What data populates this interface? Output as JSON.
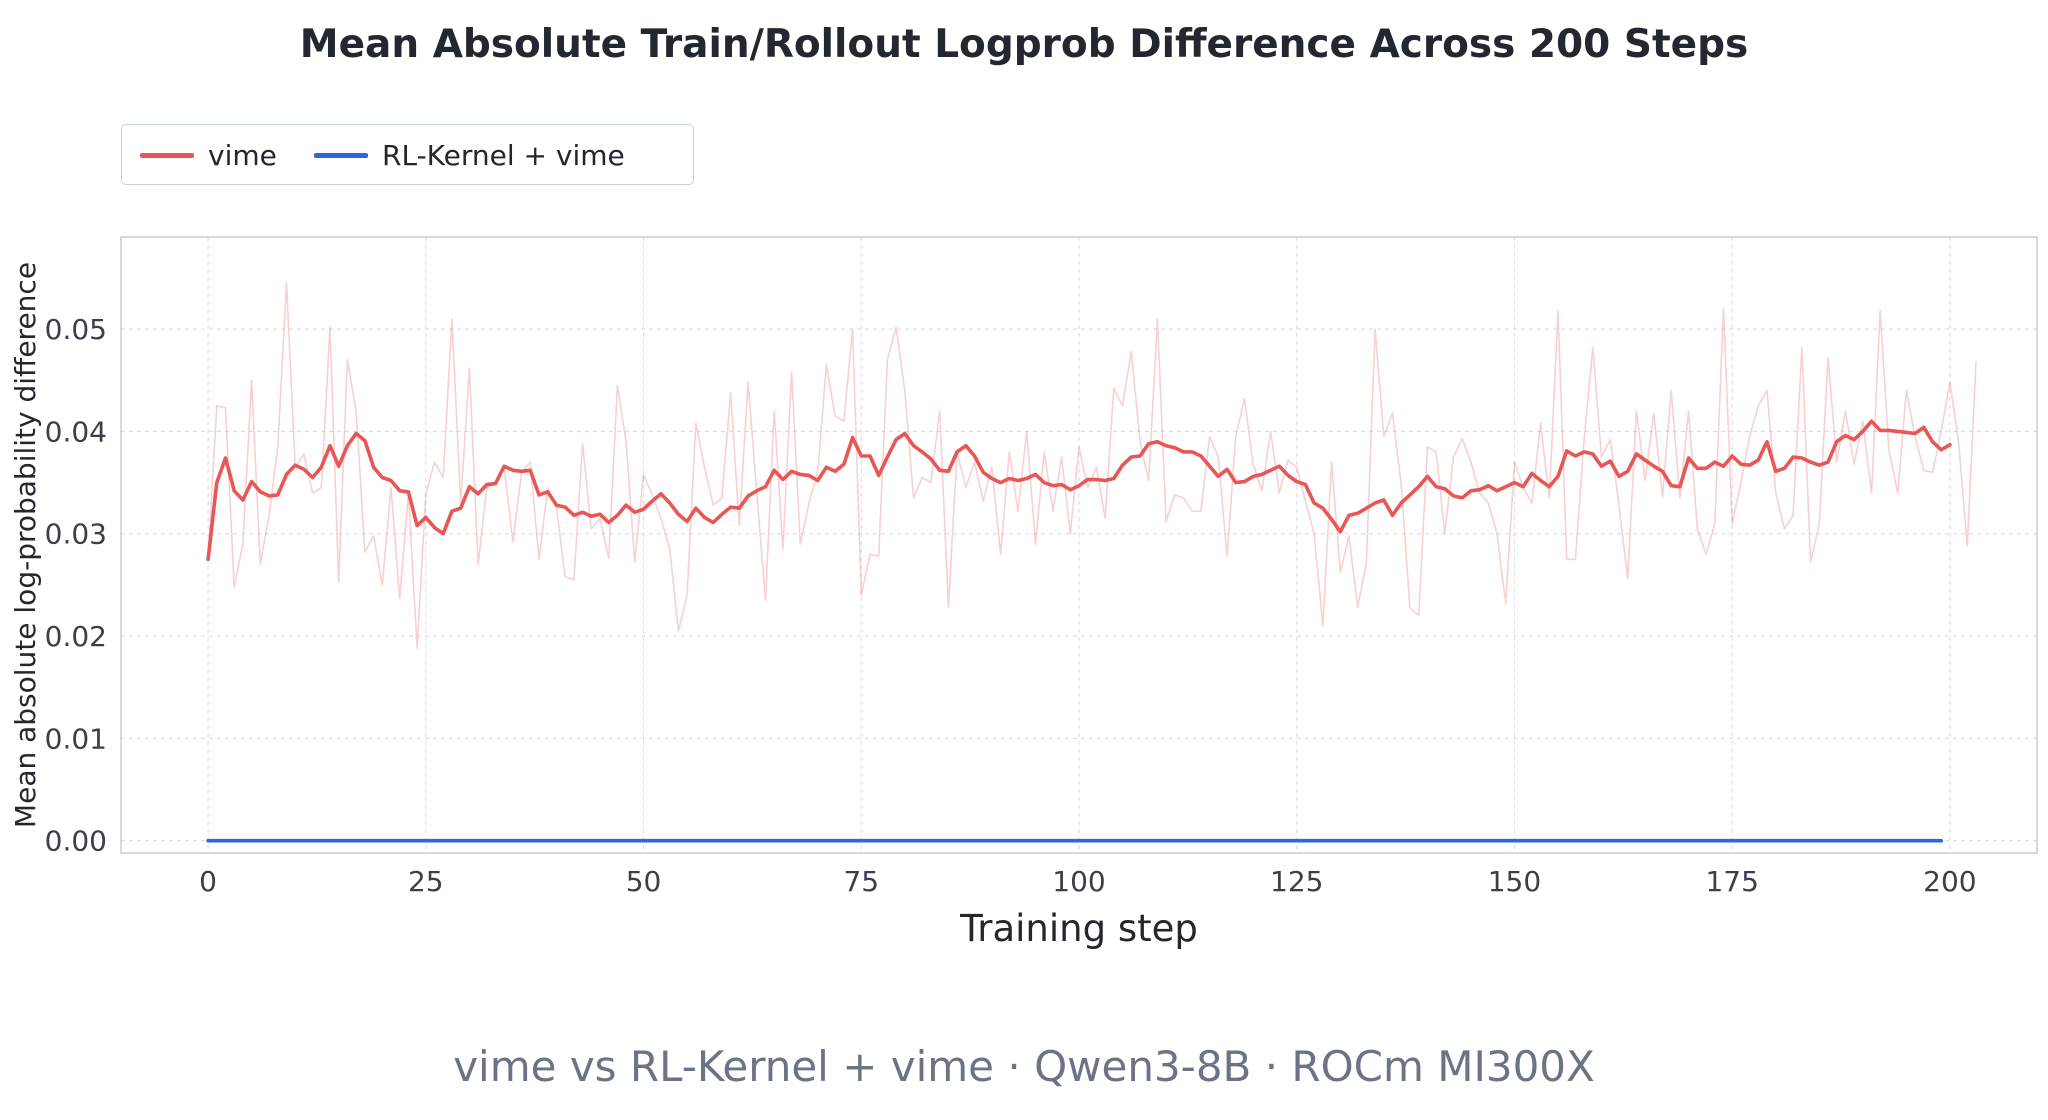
{
  "title": "Mean Absolute Train/Rollout Logprob Difference Across 200 Steps",
  "subtitle": "vime vs RL-Kernel + vime · Qwen3-8B · ROCm MI300X",
  "legend": [
    {
      "label": "vime",
      "color": "#e85656"
    },
    {
      "label": "RL-Kernel + vime",
      "color": "#2f66de"
    }
  ],
  "chart_data": {
    "type": "line",
    "xlabel": "Training step",
    "ylabel": "Mean absolute log-probability difference",
    "xlim": [
      -10,
      210
    ],
    "ylim": [
      -0.0012,
      0.059
    ],
    "xticks": [
      0,
      25,
      50,
      75,
      100,
      125,
      150,
      175,
      200
    ],
    "xtick_labels": [
      "0",
      "25",
      "50",
      "75",
      "100",
      "125",
      "150",
      "175",
      "200"
    ],
    "yticks": [
      0.0,
      0.01,
      0.02,
      0.03,
      0.04,
      0.05
    ],
    "ytick_labels": [
      "0.00",
      "0.01",
      "0.02",
      "0.03",
      "0.04",
      "0.05"
    ],
    "grid": true,
    "legend_position": "top-left, above plot",
    "x_start": 0,
    "x_step": 1,
    "series": [
      {
        "name": "vime",
        "style": "raw (faint)",
        "color": "#e85656",
        "values": [
          0.0275,
          0.0425,
          0.0423,
          0.0248,
          0.029,
          0.045,
          0.027,
          0.0318,
          0.0385,
          0.0545,
          0.0365,
          0.0378,
          0.034,
          0.0345,
          0.0502,
          0.0253,
          0.047,
          0.042,
          0.0282,
          0.0298,
          0.025,
          0.0345,
          0.0237,
          0.034,
          0.0188,
          0.0338,
          0.037,
          0.0355,
          0.051,
          0.033,
          0.0462,
          0.027,
          0.0345,
          0.035,
          0.0365,
          0.0292,
          0.036,
          0.037,
          0.0275,
          0.0345,
          0.0325,
          0.0258,
          0.0255,
          0.0388,
          0.0305,
          0.0315,
          0.0276,
          0.0445,
          0.039,
          0.0272,
          0.0358,
          0.0338,
          0.0315,
          0.0285,
          0.0205,
          0.024,
          0.0408,
          0.0365,
          0.0328,
          0.0335,
          0.0438,
          0.0308,
          0.0448,
          0.034,
          0.0235,
          0.042,
          0.0285,
          0.0458,
          0.029,
          0.033,
          0.036,
          0.0465,
          0.0415,
          0.041,
          0.05,
          0.024,
          0.028,
          0.0278,
          0.047,
          0.0502,
          0.044,
          0.0335,
          0.0355,
          0.035,
          0.042,
          0.0228,
          0.038,
          0.0345,
          0.037,
          0.0332,
          0.0365,
          0.028,
          0.038,
          0.0322,
          0.04,
          0.029,
          0.038,
          0.0322,
          0.0375,
          0.03,
          0.0385,
          0.0345,
          0.0365,
          0.0315,
          0.0442,
          0.0425,
          0.0478,
          0.039,
          0.0352,
          0.051,
          0.0312,
          0.0338,
          0.0335,
          0.0322,
          0.0322,
          0.0395,
          0.0375,
          0.0278,
          0.0395,
          0.0432,
          0.0368,
          0.0342,
          0.04,
          0.034,
          0.0372,
          0.0365,
          0.0332,
          0.03,
          0.021,
          0.037,
          0.0262,
          0.0298,
          0.0228,
          0.0272,
          0.05,
          0.0395,
          0.0418,
          0.0348,
          0.0228,
          0.022,
          0.0385,
          0.038,
          0.03,
          0.0375,
          0.0393,
          0.037,
          0.034,
          0.033,
          0.03,
          0.0232,
          0.037,
          0.0345,
          0.033,
          0.0408,
          0.0335,
          0.0518,
          0.0275,
          0.0275,
          0.0392,
          0.0482,
          0.0375,
          0.0392,
          0.0328,
          0.0256,
          0.042,
          0.0352,
          0.0418,
          0.0336,
          0.044,
          0.0335,
          0.042,
          0.0305,
          0.028,
          0.031,
          0.052,
          0.031,
          0.035,
          0.0395,
          0.0425,
          0.044,
          0.034,
          0.0305,
          0.0318,
          0.0482,
          0.0272,
          0.031,
          0.0472,
          0.037,
          0.042,
          0.0368,
          0.041,
          0.034,
          0.0518,
          0.0382,
          0.034,
          0.044,
          0.0395,
          0.0362,
          0.036,
          0.04,
          0.0448,
          0.039,
          0.0288,
          0.0468
        ]
      },
      {
        "name": "vime",
        "style": "smoothed (bold)",
        "color": "#e85656",
        "values": [
          0.0275,
          0.035,
          0.0374,
          0.0342,
          0.0333,
          0.0351,
          0.0341,
          0.0337,
          0.0338,
          0.0358,
          0.0367,
          0.0363,
          0.0355,
          0.0365,
          0.0386,
          0.0366,
          0.0386,
          0.0398,
          0.0391,
          0.0365,
          0.0355,
          0.0352,
          0.0342,
          0.0341,
          0.0308,
          0.0316,
          0.0306,
          0.03,
          0.0322,
          0.0325,
          0.0346,
          0.0339,
          0.0348,
          0.0349,
          0.0366,
          0.0362,
          0.0361,
          0.0362,
          0.0338,
          0.0341,
          0.0328,
          0.0326,
          0.0318,
          0.0321,
          0.0317,
          0.0319,
          0.0311,
          0.0318,
          0.0328,
          0.0321,
          0.0324,
          0.0332,
          0.0339,
          0.033,
          0.0319,
          0.0312,
          0.0325,
          0.0316,
          0.0311,
          0.0319,
          0.0326,
          0.0325,
          0.0337,
          0.0342,
          0.0346,
          0.0362,
          0.0353,
          0.0361,
          0.0358,
          0.0357,
          0.0352,
          0.0365,
          0.0361,
          0.0368,
          0.0394,
          0.0376,
          0.0376,
          0.0357,
          0.0375,
          0.0392,
          0.0398,
          0.0386,
          0.038,
          0.0373,
          0.0362,
          0.0361,
          0.038,
          0.0386,
          0.0376,
          0.036,
          0.0354,
          0.035,
          0.0354,
          0.0352,
          0.0354,
          0.0358,
          0.035,
          0.0347,
          0.0348,
          0.0343,
          0.0347,
          0.0353,
          0.0353,
          0.0352,
          0.0354,
          0.0367,
          0.0375,
          0.0376,
          0.0388,
          0.039,
          0.0386,
          0.0384,
          0.038,
          0.038,
          0.0376,
          0.0366,
          0.0356,
          0.0363,
          0.035,
          0.0351,
          0.0356,
          0.0358,
          0.0362,
          0.0366,
          0.0357,
          0.0351,
          0.0348,
          0.033,
          0.0325,
          0.0314,
          0.0302,
          0.0318,
          0.032,
          0.0325,
          0.033,
          0.0333,
          0.0318,
          0.033,
          0.0338,
          0.0346,
          0.0356,
          0.0346,
          0.0344,
          0.0337,
          0.0335,
          0.0342,
          0.0343,
          0.0347,
          0.0342,
          0.0346,
          0.035,
          0.0346,
          0.0359,
          0.0352,
          0.0346,
          0.0356,
          0.0381,
          0.0376,
          0.038,
          0.0378,
          0.0366,
          0.0371,
          0.0356,
          0.0361,
          0.0378,
          0.0372,
          0.0366,
          0.0361,
          0.0347,
          0.0346,
          0.0374,
          0.0364,
          0.0364,
          0.037,
          0.0366,
          0.0376,
          0.0368,
          0.0367,
          0.0372,
          0.039,
          0.0361,
          0.0364,
          0.0375,
          0.0374,
          0.037,
          0.0367,
          0.037,
          0.039,
          0.0396,
          0.0392,
          0.04,
          0.041,
          0.0401,
          0.0401,
          0.04,
          0.0399,
          0.0398,
          0.0404,
          0.039,
          0.0382,
          0.0387
        ]
      },
      {
        "name": "RL-Kernel + vime",
        "style": "line",
        "color": "#2f66de",
        "constant_value": 0.0,
        "x_range": [
          0,
          199
        ]
      }
    ]
  }
}
